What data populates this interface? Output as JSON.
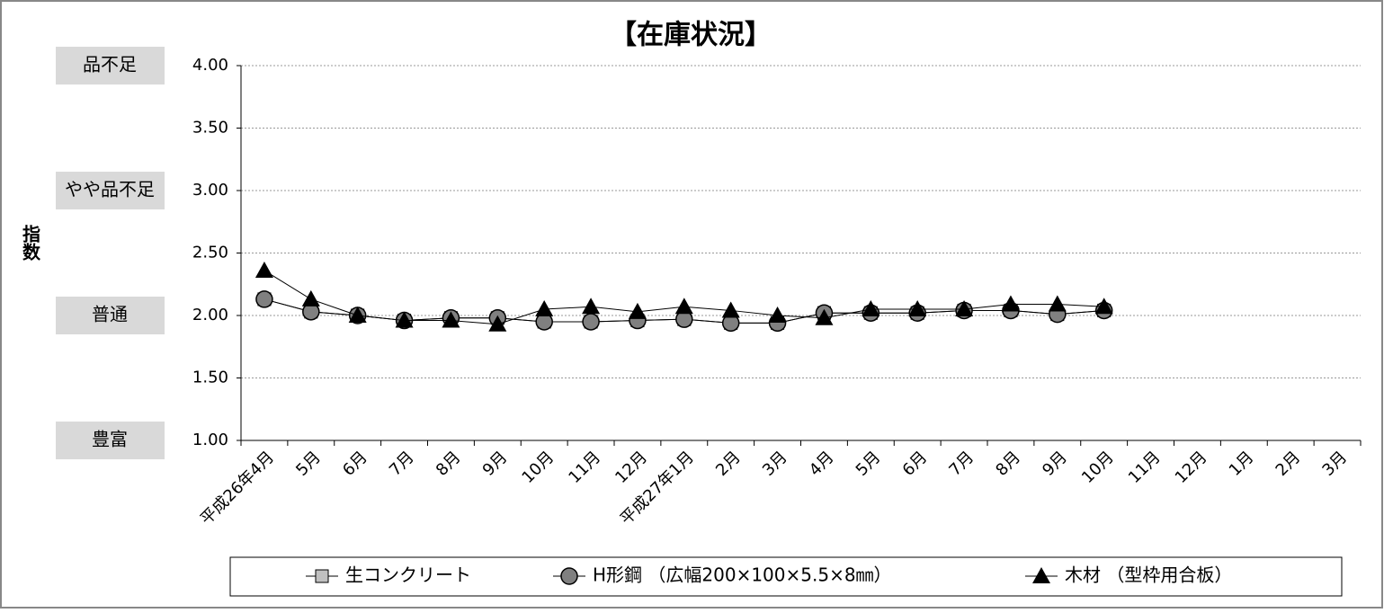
{
  "chart_data": {
    "type": "line",
    "title": "【在庫状況】",
    "y_label": "指数",
    "categories": [
      "平成26年4月",
      "5月",
      "6月",
      "7月",
      "8月",
      "9月",
      "10月",
      "11月",
      "12月",
      "平成27年1月",
      "2月",
      "3月",
      "4月",
      "5月",
      "6月",
      "7月",
      "8月",
      "9月",
      "10月",
      "11月",
      "12月",
      "1月",
      "2月",
      "3月"
    ],
    "series": [
      {
        "name": "生コンクリート",
        "color": "#c0c0c0",
        "marker": "square",
        "values": [
          2.13,
          2.03,
          2.0,
          1.96,
          1.98,
          1.98,
          1.95,
          1.95,
          1.96,
          1.97,
          1.94,
          1.94,
          2.02,
          2.02,
          2.02,
          2.04,
          2.04,
          2.01,
          2.04,
          null,
          null,
          null,
          null,
          null
        ]
      },
      {
        "name": "H形鋼 （広幅200×100×5.5×8㎜）",
        "color": "#808080",
        "marker": "circle",
        "values": [
          2.13,
          2.03,
          2.0,
          1.96,
          1.98,
          1.98,
          1.95,
          1.95,
          1.96,
          1.97,
          1.94,
          1.94,
          2.02,
          2.02,
          2.02,
          2.04,
          2.04,
          2.01,
          2.04,
          null,
          null,
          null,
          null,
          null
        ]
      },
      {
        "name": "木材 （型枠用合板）",
        "color": "#000000",
        "marker": "triangle",
        "values": [
          2.36,
          2.13,
          2.0,
          1.96,
          1.96,
          1.93,
          2.05,
          2.07,
          2.03,
          2.07,
          2.04,
          2.0,
          1.98,
          2.05,
          2.05,
          2.05,
          2.09,
          2.09,
          2.07,
          null,
          null,
          null,
          null,
          null
        ]
      }
    ],
    "ylim": [
      1,
      4
    ],
    "yticks": [
      {
        "value": 1,
        "label": "1.00"
      },
      {
        "value": 1.5,
        "label": "1.50"
      },
      {
        "value": 2,
        "label": "2.00"
      },
      {
        "value": 2.5,
        "label": "2.50"
      },
      {
        "value": 3,
        "label": "3.00"
      },
      {
        "value": 3.5,
        "label": "3.50"
      },
      {
        "value": 4,
        "label": "4.00"
      }
    ],
    "level_labels": [
      {
        "value": 4,
        "label": "品不足"
      },
      {
        "value": 3,
        "label": "やや品不足"
      },
      {
        "value": 2,
        "label": "普通"
      },
      {
        "value": 1,
        "label": "豊富"
      }
    ],
    "grid": true,
    "legend": "bottom"
  }
}
